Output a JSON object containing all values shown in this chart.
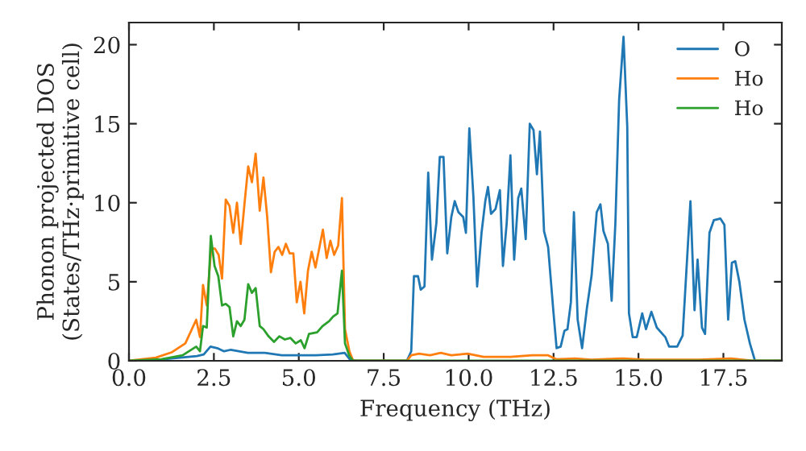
{
  "chart_data": {
    "type": "line",
    "xlabel": "Frequency (THz)",
    "ylabel": "Phonon projected DOS\n(States/THz·primitive cell)",
    "xlim": [
      0,
      19.22
    ],
    "ylim": [
      0,
      21.4
    ],
    "xticks": [
      {
        "value": 0,
        "label": "0.0"
      },
      {
        "value": 2.5,
        "label": "2.5"
      },
      {
        "value": 5,
        "label": "5.0"
      },
      {
        "value": 7.5,
        "label": "7.5"
      },
      {
        "value": 10,
        "label": "10.0"
      },
      {
        "value": 12.5,
        "label": "12.5"
      },
      {
        "value": 15,
        "label": "15.0"
      },
      {
        "value": 17.5,
        "label": "17.5"
      }
    ],
    "yticks": [
      0,
      5,
      10,
      15,
      20
    ],
    "legend": "top right",
    "grid": false,
    "marker": "none",
    "line_style": "solid",
    "series": [
      {
        "name": "O",
        "color": "#1f77b4",
        "x": [
          0,
          1.0,
          2.0,
          2.2,
          2.4,
          2.6,
          2.8,
          3.0,
          3.5,
          4.0,
          4.5,
          5.0,
          5.5,
          6.0,
          6.35,
          6.5,
          6.7,
          8.0,
          8.18,
          8.31,
          8.39,
          8.51,
          8.59,
          8.7,
          8.81,
          8.92,
          9.05,
          9.15,
          9.26,
          9.37,
          9.49,
          9.59,
          9.7,
          9.84,
          9.92,
          10.02,
          10.14,
          10.25,
          10.38,
          10.49,
          10.57,
          10.66,
          10.79,
          10.92,
          11.01,
          11.12,
          11.23,
          11.34,
          11.46,
          11.55,
          11.68,
          11.8,
          11.91,
          12.01,
          12.1,
          12.22,
          12.34,
          12.5,
          12.59,
          12.71,
          12.82,
          12.91,
          13.01,
          13.1,
          13.21,
          13.34,
          13.48,
          13.62,
          13.77,
          13.88,
          13.97,
          14.1,
          14.21,
          14.32,
          14.43,
          14.56,
          14.67,
          14.72,
          14.83,
          14.95,
          15.11,
          15.22,
          15.38,
          15.54,
          15.79,
          15.9,
          16.14,
          16.3,
          16.53,
          16.65,
          16.74,
          16.87,
          16.96,
          17.09,
          17.22,
          17.41,
          17.53,
          17.64,
          17.75,
          17.85,
          17.97,
          18.12,
          18.28,
          18.43,
          19.22
        ],
        "values": [
          0,
          0.1,
          0.3,
          0.4,
          0.9,
          0.8,
          0.6,
          0.7,
          0.5,
          0.5,
          0.35,
          0.35,
          0.35,
          0.4,
          0.5,
          0.1,
          0,
          0,
          0,
          0.6,
          5.35,
          5.35,
          4.5,
          4.7,
          11.9,
          6.4,
          8.7,
          12.9,
          12.9,
          6.8,
          9.1,
          10.1,
          9.4,
          9.1,
          8.1,
          14.7,
          10.4,
          4.7,
          8.1,
          10.1,
          11.0,
          9.3,
          9.6,
          10.8,
          6.0,
          8.7,
          13.0,
          6.4,
          10.3,
          10.9,
          7.7,
          15.0,
          14.6,
          11.8,
          14.5,
          8.2,
          7.2,
          3.0,
          0.8,
          0.9,
          1.9,
          2.0,
          3.7,
          9.4,
          2.6,
          0.8,
          3.3,
          5.4,
          9.4,
          9.9,
          8.2,
          7.4,
          3.8,
          8.7,
          16.5,
          20.5,
          14.8,
          3.0,
          1.5,
          1.5,
          3.0,
          2.0,
          3.1,
          2.1,
          1.5,
          0.9,
          0.9,
          1.6,
          10.1,
          3.2,
          6.4,
          2.1,
          1.7,
          8.1,
          8.9,
          9.0,
          8.6,
          2.6,
          6.2,
          6.3,
          5.0,
          2.6,
          1.1,
          0,
          0
        ]
      },
      {
        "name": "Ho",
        "color": "#ff7f0e",
        "x": [
          0,
          0.79,
          1.27,
          1.66,
          1.98,
          2.09,
          2.18,
          2.29,
          2.42,
          2.53,
          2.64,
          2.74,
          2.85,
          2.96,
          3.07,
          3.18,
          3.29,
          3.4,
          3.51,
          3.62,
          3.73,
          3.85,
          3.96,
          4.07,
          4.18,
          4.29,
          4.4,
          4.51,
          4.62,
          4.73,
          4.84,
          4.94,
          5.05,
          5.16,
          5.27,
          5.38,
          5.49,
          5.6,
          5.71,
          5.82,
          5.93,
          6.04,
          6.16,
          6.27,
          6.36,
          6.49,
          6.6,
          8.18,
          8.31,
          8.54,
          8.86,
          9.18,
          9.49,
          9.97,
          10.44,
          11.23,
          11.87,
          12.34,
          12.58,
          13.13,
          13.61,
          14.56,
          15.19,
          16.77,
          17.72,
          18.35,
          19.22
        ],
        "values": [
          0,
          0.2,
          0.55,
          1.1,
          2.6,
          1.5,
          4.8,
          3.5,
          7.1,
          7.1,
          6.7,
          5.2,
          10.2,
          9.8,
          8.1,
          10.0,
          7.4,
          9.9,
          12.3,
          11.3,
          13.1,
          9.5,
          11.6,
          9.1,
          5.6,
          6.9,
          7.2,
          6.7,
          7.4,
          6.8,
          6.8,
          3.7,
          5.0,
          3.0,
          5.7,
          6.9,
          5.9,
          7.1,
          8.3,
          6.5,
          7.6,
          6.7,
          7.3,
          10.3,
          2.0,
          0.6,
          0,
          0,
          0.35,
          0.45,
          0.35,
          0.5,
          0.35,
          0.45,
          0.25,
          0.25,
          0.35,
          0.35,
          0.1,
          0.15,
          0.07,
          0.15,
          0.07,
          0.07,
          0.15,
          0,
          0
        ]
      },
      {
        "name": "Ho",
        "color": "#2ca02c",
        "x": [
          0,
          0.95,
          1.58,
          1.98,
          2.09,
          2.18,
          2.29,
          2.41,
          2.52,
          2.63,
          2.74,
          2.85,
          2.96,
          3.07,
          3.18,
          3.29,
          3.4,
          3.51,
          3.62,
          3.73,
          3.85,
          3.96,
          4.11,
          4.27,
          4.43,
          4.59,
          4.75,
          4.91,
          5.06,
          5.17,
          5.3,
          5.54,
          5.7,
          5.89,
          6.01,
          6.14,
          6.27,
          6.36,
          6.49,
          6.6,
          19.22
        ],
        "values": [
          0,
          0.1,
          0.35,
          0.9,
          0.6,
          2.2,
          2.1,
          7.9,
          6.0,
          5.35,
          3.5,
          3.6,
          3.4,
          1.55,
          2.5,
          2.2,
          2.6,
          4.85,
          4.3,
          4.6,
          2.2,
          2.0,
          1.55,
          1.2,
          1.55,
          1.35,
          1.45,
          1.1,
          1.3,
          0.8,
          1.7,
          1.8,
          2.2,
          2.5,
          2.8,
          3.0,
          5.7,
          1.1,
          0.3,
          0,
          0
        ]
      }
    ]
  }
}
